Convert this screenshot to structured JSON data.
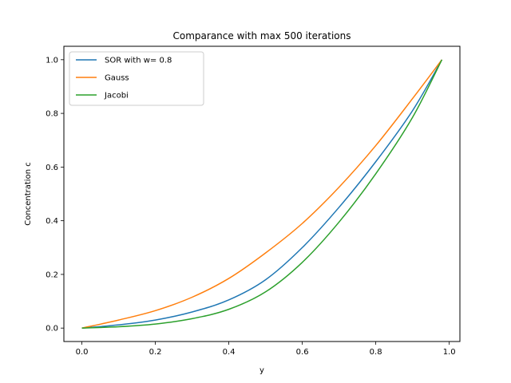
{
  "chart_data": {
    "type": "line",
    "title": "Comparance with max 500 iterations",
    "xlabel": "y",
    "ylabel": "Concentration c",
    "xlim": [
      -0.049,
      1.029
    ],
    "ylim": [
      -0.05,
      1.05
    ],
    "xticks": [
      0.0,
      0.2,
      0.4,
      0.6,
      0.8,
      1.0
    ],
    "xtick_labels": [
      "0.0",
      "0.2",
      "0.4",
      "0.6",
      "0.8",
      "1.0"
    ],
    "yticks": [
      0.0,
      0.2,
      0.4,
      0.6,
      0.8,
      1.0
    ],
    "ytick_labels": [
      "0.0",
      "0.2",
      "0.4",
      "0.6",
      "0.8",
      "1.0"
    ],
    "grid": false,
    "legend_position": "upper-left",
    "x": [
      0.0,
      0.1,
      0.2,
      0.3,
      0.4,
      0.5,
      0.6,
      0.7,
      0.8,
      0.9,
      0.98
    ],
    "series": [
      {
        "name": "SOR with w= 0.8",
        "color": "#1f77b4",
        "values": [
          0.0,
          0.012,
          0.03,
          0.06,
          0.105,
          0.18,
          0.3,
          0.45,
          0.62,
          0.81,
          1.0
        ]
      },
      {
        "name": "Gauss",
        "color": "#ff7f0e",
        "values": [
          0.0,
          0.03,
          0.065,
          0.115,
          0.185,
          0.28,
          0.39,
          0.525,
          0.68,
          0.855,
          1.0
        ]
      },
      {
        "name": "Jacobi",
        "color": "#2ca02c",
        "values": [
          0.0,
          0.005,
          0.015,
          0.035,
          0.07,
          0.135,
          0.245,
          0.395,
          0.575,
          0.785,
          1.0
        ]
      }
    ]
  }
}
